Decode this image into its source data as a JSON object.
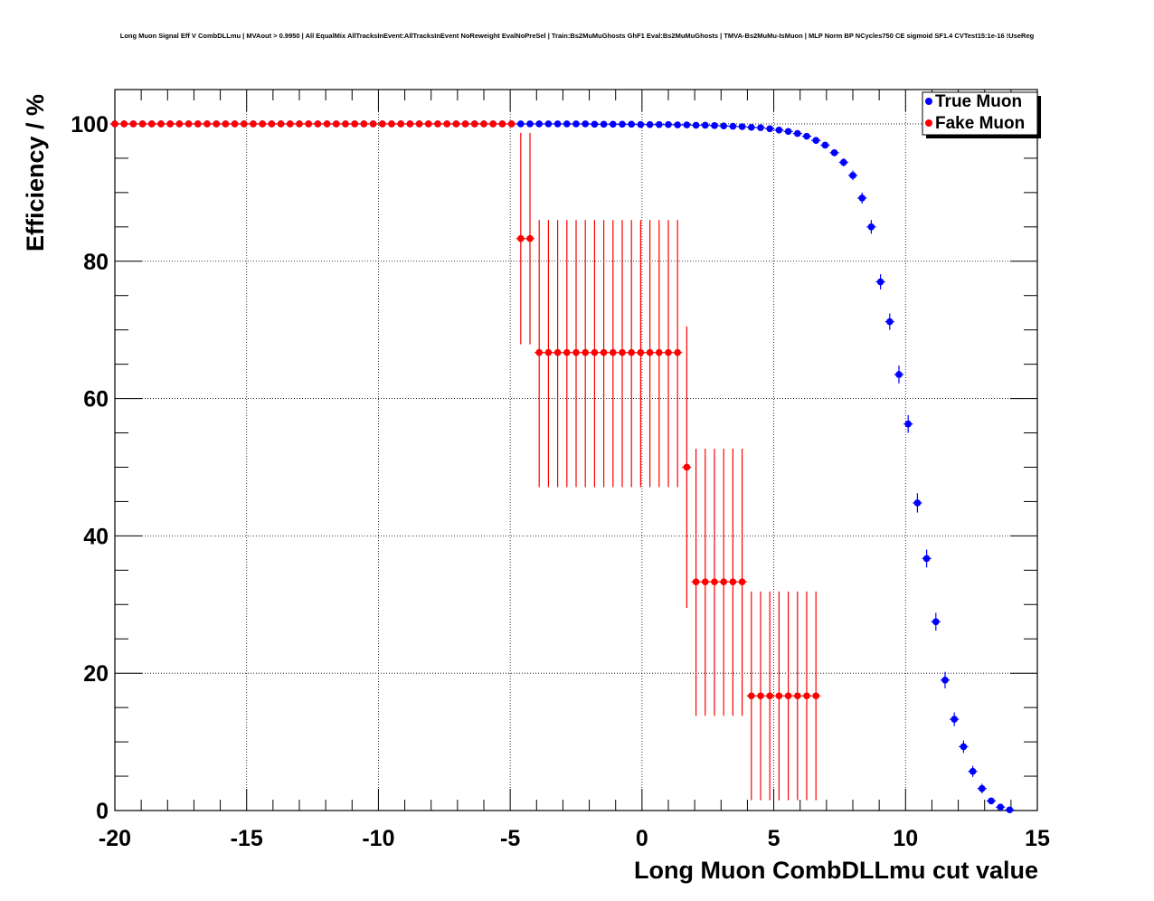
{
  "chart_data": {
    "type": "scatter",
    "title": "Long Muon Signal Eff V CombDLLmu | MVAout > 0.9950 | All EqualMix AllTracksInEvent:AllTracksInEvent NoReweight EvalNoPreSel | Train:Bs2MuMuGhosts GhF1 Eval:Bs2MuMuGhosts | TMVA-Bs2MuMu-IsMuon | MLP Norm BP NCycles750 CE sigmoid SF1.4 CVTest15:1e-16 !UseReg",
    "xlabel": "Long Muon CombDLLmu cut value",
    "ylabel": "Efficiency / %",
    "xlim": [
      -20,
      15
    ],
    "ylim": [
      0,
      105
    ],
    "x_ticks": [
      -20,
      -15,
      -10,
      -5,
      0,
      5,
      10,
      15
    ],
    "x_tick_labels": [
      "-20",
      "-15",
      "-10",
      "-5",
      "0",
      "5",
      "10",
      "15"
    ],
    "y_ticks": [
      0,
      20,
      40,
      60,
      80,
      100
    ],
    "y_tick_labels": [
      "0",
      "20",
      "40",
      "60",
      "80",
      "100"
    ],
    "grid": true,
    "legend_position": "top-right",
    "series": [
      {
        "name": "True Muon",
        "color": "#0000ff",
        "x": [
          -20,
          -19.65,
          -19.3,
          -18.95,
          -18.6,
          -18.25,
          -17.9,
          -17.55,
          -17.2,
          -16.85,
          -16.5,
          -16.15,
          -15.8,
          -15.45,
          -15.1,
          -14.75,
          -14.4,
          -14.05,
          -13.7,
          -13.35,
          -13,
          -12.65,
          -12.3,
          -11.95,
          -11.6,
          -11.25,
          -10.9,
          -10.55,
          -10.2,
          -9.85,
          -9.5,
          -9.15,
          -8.8,
          -8.45,
          -8.1,
          -7.75,
          -7.4,
          -7.05,
          -6.7,
          -6.35,
          -6,
          -5.65,
          -5.3,
          -4.95,
          -4.6,
          -4.25,
          -3.9,
          -3.55,
          -3.2,
          -2.85,
          -2.5,
          -2.15,
          -1.8,
          -1.45,
          -1.1,
          -0.75,
          -0.4,
          -0.05,
          0.3,
          0.65,
          1,
          1.35,
          1.7,
          2.05,
          2.4,
          2.75,
          3.1,
          3.45,
          3.8,
          4.15,
          4.5,
          4.85,
          5.2,
          5.55,
          5.9,
          6.25,
          6.6,
          6.95,
          7.3,
          7.65,
          8,
          8.35,
          8.7,
          9.05,
          9.4,
          9.75,
          10.1,
          10.45,
          10.8,
          11.15,
          11.5,
          11.85,
          12.2,
          12.55,
          12.9,
          13.25,
          13.6,
          13.95
        ],
        "y": [
          100,
          100,
          100,
          100,
          100,
          100,
          100,
          100,
          100,
          100,
          100,
          100,
          100,
          100,
          100,
          100,
          100,
          100,
          100,
          100,
          100,
          100,
          100,
          100,
          100,
          100,
          100,
          100,
          100,
          100,
          100,
          100,
          100,
          100,
          100,
          100,
          100,
          100,
          100,
          100,
          100,
          100,
          100,
          100,
          100,
          100,
          100,
          100,
          100,
          100,
          100,
          100,
          99.95,
          99.95,
          99.95,
          99.95,
          99.95,
          99.9,
          99.9,
          99.9,
          99.9,
          99.85,
          99.85,
          99.8,
          99.8,
          99.75,
          99.7,
          99.65,
          99.6,
          99.5,
          99.45,
          99.3,
          99.1,
          98.9,
          98.6,
          98.2,
          97.6,
          96.9,
          95.8,
          94.4,
          92.5,
          89.2,
          85,
          77,
          71.2,
          63.5,
          56.3,
          44.8,
          36.7,
          27.5,
          19,
          13.3,
          9.3,
          5.7,
          3.2,
          1.4,
          0.5,
          0.1
        ],
        "yerr": [
          0,
          0,
          0,
          0,
          0,
          0,
          0,
          0,
          0,
          0,
          0,
          0,
          0,
          0,
          0,
          0,
          0,
          0,
          0,
          0,
          0,
          0,
          0,
          0,
          0,
          0,
          0,
          0,
          0,
          0,
          0,
          0,
          0,
          0,
          0,
          0,
          0,
          0,
          0,
          0,
          0,
          0,
          0,
          0,
          0,
          0,
          0,
          0,
          0,
          0,
          0,
          0,
          0,
          0,
          0,
          0,
          0,
          0,
          0,
          0,
          0,
          0,
          0,
          0,
          0,
          0,
          0,
          0,
          0,
          0,
          0,
          0,
          0.1,
          0.1,
          0.15,
          0.2,
          0.3,
          0.4,
          0.5,
          0.6,
          0.7,
          0.8,
          1,
          1.1,
          1.2,
          1.3,
          1.3,
          1.4,
          1.3,
          1.3,
          1.2,
          1,
          0.9,
          0.8,
          0.7,
          0.5,
          0.3,
          0.2
        ]
      },
      {
        "name": "Fake Muon",
        "color": "#ff0000",
        "x": [
          -20,
          -19.65,
          -19.3,
          -18.95,
          -18.6,
          -18.25,
          -17.9,
          -17.55,
          -17.2,
          -16.85,
          -16.5,
          -16.15,
          -15.8,
          -15.45,
          -15.1,
          -14.75,
          -14.4,
          -14.05,
          -13.7,
          -13.35,
          -13,
          -12.65,
          -12.3,
          -11.95,
          -11.6,
          -11.25,
          -10.9,
          -10.55,
          -10.2,
          -9.85,
          -9.5,
          -9.15,
          -8.8,
          -8.45,
          -8.1,
          -7.75,
          -7.4,
          -7.05,
          -6.7,
          -6.35,
          -6,
          -5.65,
          -5.3,
          -4.95,
          -4.6,
          -4.25,
          -3.9,
          -3.55,
          -3.2,
          -2.85,
          -2.5,
          -2.15,
          -1.8,
          -1.45,
          -1.1,
          -0.75,
          -0.4,
          -0.05,
          0.3,
          0.65,
          1,
          1.35,
          1.7,
          2.05,
          2.4,
          2.75,
          3.1,
          3.45,
          3.8,
          4.15,
          4.5,
          4.85,
          5.2,
          5.55,
          5.9,
          6.25,
          6.6
        ],
        "y": [
          100,
          100,
          100,
          100,
          100,
          100,
          100,
          100,
          100,
          100,
          100,
          100,
          100,
          100,
          100,
          100,
          100,
          100,
          100,
          100,
          100,
          100,
          100,
          100,
          100,
          100,
          100,
          100,
          100,
          100,
          100,
          100,
          100,
          100,
          100,
          100,
          100,
          100,
          100,
          100,
          100,
          100,
          100,
          100,
          83.3,
          83.3,
          66.7,
          66.7,
          66.7,
          66.7,
          66.7,
          66.7,
          66.7,
          66.7,
          66.7,
          66.7,
          66.7,
          66.7,
          66.7,
          66.7,
          66.7,
          66.7,
          50,
          33.3,
          33.3,
          33.3,
          33.3,
          33.3,
          33.3,
          16.7,
          16.7,
          16.7,
          16.7,
          16.7,
          16.7,
          16.7,
          16.7
        ],
        "yerr_low": [
          0,
          0,
          0,
          0,
          0,
          0,
          0,
          0,
          0,
          0,
          0,
          0,
          0,
          0,
          0,
          0,
          0,
          0,
          0,
          0,
          0,
          0,
          0,
          0,
          0,
          0,
          0,
          0,
          0,
          0,
          0,
          0,
          0,
          0,
          0,
          0,
          0,
          0,
          0,
          0,
          0,
          0,
          0,
          0,
          15.4,
          15.4,
          19.6,
          19.6,
          19.6,
          19.6,
          19.6,
          19.6,
          19.6,
          19.6,
          19.6,
          19.6,
          19.6,
          19.6,
          19.6,
          19.6,
          19.6,
          19.6,
          20.5,
          19.5,
          19.5,
          19.5,
          19.5,
          19.5,
          19.5,
          15.2,
          15.2,
          15.2,
          15.2,
          15.2,
          15.2,
          15.2,
          15.2
        ],
        "yerr_high": [
          0,
          0,
          0,
          0,
          0,
          0,
          0,
          0,
          0,
          0,
          0,
          0,
          0,
          0,
          0,
          0,
          0,
          0,
          0,
          0,
          0,
          0,
          0,
          0,
          0,
          0,
          0,
          0,
          0,
          0,
          0,
          0,
          0,
          0,
          0,
          0,
          0,
          0,
          0,
          0,
          0,
          0,
          0,
          0,
          15.4,
          15.4,
          19.3,
          19.3,
          19.3,
          19.3,
          19.3,
          19.3,
          19.3,
          19.3,
          19.3,
          19.3,
          19.3,
          19.3,
          19.3,
          19.3,
          19.3,
          19.3,
          20.5,
          19.4,
          19.4,
          19.4,
          19.4,
          19.4,
          19.4,
          15.2,
          15.2,
          15.2,
          15.2,
          15.2,
          15.2,
          15.2,
          15.2
        ]
      }
    ]
  }
}
